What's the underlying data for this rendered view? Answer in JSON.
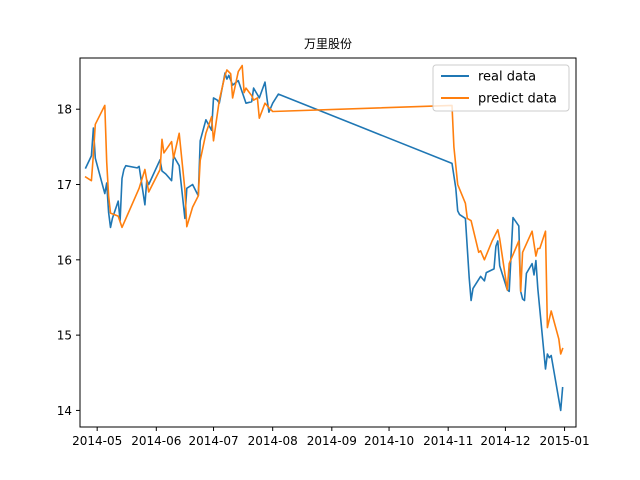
{
  "chart_data": {
    "type": "line",
    "title": "万里股份",
    "xlabel": "",
    "ylabel": "",
    "x_axis_type": "date",
    "x_ticks": [
      "2014-05",
      "2014-06",
      "2014-07",
      "2014-08",
      "2014-09",
      "2014-10",
      "2014-11",
      "2014-12",
      "2015-01"
    ],
    "y_ticks": [
      14,
      15,
      16,
      17,
      18
    ],
    "xlim": [
      "2014-04-22",
      "2015-01-07"
    ],
    "ylim": [
      13.78,
      18.68
    ],
    "grid": false,
    "legend_position": "top-right",
    "series": [
      {
        "name": "real data",
        "color": "#1f77b4",
        "points": [
          [
            "2014-04-25",
            17.22
          ],
          [
            "2014-04-28",
            17.38
          ],
          [
            "2014-04-29",
            17.75
          ],
          [
            "2014-04-30",
            17.35
          ],
          [
            "2014-05-05",
            16.88
          ],
          [
            "2014-05-06",
            17.02
          ],
          [
            "2014-05-07",
            16.63
          ],
          [
            "2014-05-08",
            16.43
          ],
          [
            "2014-05-09",
            16.55
          ],
          [
            "2014-05-12",
            16.78
          ],
          [
            "2014-05-13",
            16.52
          ],
          [
            "2014-05-14",
            17.08
          ],
          [
            "2014-05-15",
            17.2
          ],
          [
            "2014-05-16",
            17.25
          ],
          [
            "2014-05-22",
            17.22
          ],
          [
            "2014-05-23",
            17.24
          ],
          [
            "2014-05-26",
            16.73
          ],
          [
            "2014-05-27",
            17.06
          ],
          [
            "2014-05-28",
            17.0
          ],
          [
            "2014-06-03",
            17.33
          ],
          [
            "2014-06-04",
            17.18
          ],
          [
            "2014-06-06",
            17.14
          ],
          [
            "2014-06-09",
            17.05
          ],
          [
            "2014-06-10",
            17.38
          ],
          [
            "2014-06-13",
            17.25
          ],
          [
            "2014-06-16",
            16.55
          ],
          [
            "2014-06-17",
            16.95
          ],
          [
            "2014-06-20",
            17.0
          ],
          [
            "2014-06-23",
            16.85
          ],
          [
            "2014-06-24",
            17.58
          ],
          [
            "2014-06-27",
            17.86
          ],
          [
            "2014-06-30",
            17.72
          ],
          [
            "2014-07-01",
            18.15
          ],
          [
            "2014-07-03",
            18.12
          ],
          [
            "2014-07-04",
            18.08
          ],
          [
            "2014-07-07",
            18.48
          ],
          [
            "2014-07-08",
            18.4
          ],
          [
            "2014-07-09",
            18.45
          ],
          [
            "2014-07-11",
            18.32
          ],
          [
            "2014-07-14",
            18.38
          ],
          [
            "2014-07-18",
            18.08
          ],
          [
            "2014-07-21",
            18.1
          ],
          [
            "2014-07-22",
            18.28
          ],
          [
            "2014-07-25",
            18.15
          ],
          [
            "2014-07-28",
            18.36
          ],
          [
            "2014-07-29",
            18.14
          ],
          [
            "2014-07-30",
            17.96
          ],
          [
            "2014-08-01",
            18.08
          ],
          [
            "2014-08-04",
            18.2
          ],
          [
            "2014-11-03",
            17.28
          ],
          [
            "2014-11-05",
            16.95
          ],
          [
            "2014-11-06",
            16.65
          ],
          [
            "2014-11-07",
            16.6
          ],
          [
            "2014-11-10",
            16.55
          ],
          [
            "2014-11-12",
            15.76
          ],
          [
            "2014-11-13",
            15.46
          ],
          [
            "2014-11-14",
            15.62
          ],
          [
            "2014-11-18",
            15.78
          ],
          [
            "2014-11-20",
            15.72
          ],
          [
            "2014-11-21",
            15.83
          ],
          [
            "2014-11-25",
            15.88
          ],
          [
            "2014-11-26",
            16.18
          ],
          [
            "2014-11-27",
            16.25
          ],
          [
            "2014-11-28",
            15.92
          ],
          [
            "2014-12-02",
            15.6
          ],
          [
            "2014-12-03",
            15.58
          ],
          [
            "2014-12-05",
            16.56
          ],
          [
            "2014-12-08",
            16.45
          ],
          [
            "2014-12-09",
            15.58
          ],
          [
            "2014-12-10",
            15.48
          ],
          [
            "2014-12-11",
            15.46
          ],
          [
            "2014-12-12",
            15.82
          ],
          [
            "2014-12-15",
            15.95
          ],
          [
            "2014-12-16",
            15.8
          ],
          [
            "2014-12-17",
            15.99
          ],
          [
            "2014-12-18",
            15.62
          ],
          [
            "2014-12-22",
            14.55
          ],
          [
            "2014-12-23",
            14.75
          ],
          [
            "2014-12-24",
            14.7
          ],
          [
            "2014-12-25",
            14.73
          ],
          [
            "2014-12-30",
            14.0
          ],
          [
            "2014-12-31",
            14.3
          ]
        ]
      },
      {
        "name": "predict data",
        "color": "#ff7f0e",
        "points": [
          [
            "2014-04-25",
            17.1
          ],
          [
            "2014-04-28",
            17.05
          ],
          [
            "2014-04-29",
            17.4
          ],
          [
            "2014-04-30",
            17.8
          ],
          [
            "2014-05-05",
            18.05
          ],
          [
            "2014-05-06",
            17.3
          ],
          [
            "2014-05-07",
            16.85
          ],
          [
            "2014-05-08",
            16.62
          ],
          [
            "2014-05-12",
            16.58
          ],
          [
            "2014-05-14",
            16.43
          ],
          [
            "2014-05-23",
            16.95
          ],
          [
            "2014-05-26",
            17.2
          ],
          [
            "2014-05-28",
            16.9
          ],
          [
            "2014-06-03",
            17.2
          ],
          [
            "2014-06-04",
            17.6
          ],
          [
            "2014-06-05",
            17.42
          ],
          [
            "2014-06-09",
            17.57
          ],
          [
            "2014-06-10",
            17.35
          ],
          [
            "2014-06-13",
            17.68
          ],
          [
            "2014-06-16",
            16.93
          ],
          [
            "2014-06-17",
            16.44
          ],
          [
            "2014-06-20",
            16.7
          ],
          [
            "2014-06-23",
            16.85
          ],
          [
            "2014-06-24",
            17.32
          ],
          [
            "2014-06-27",
            17.68
          ],
          [
            "2014-06-30",
            17.9
          ],
          [
            "2014-07-01",
            17.58
          ],
          [
            "2014-07-04",
            18.12
          ],
          [
            "2014-07-07",
            18.45
          ],
          [
            "2014-07-08",
            18.52
          ],
          [
            "2014-07-10",
            18.47
          ],
          [
            "2014-07-11",
            18.15
          ],
          [
            "2014-07-14",
            18.5
          ],
          [
            "2014-07-16",
            18.58
          ],
          [
            "2014-07-17",
            18.22
          ],
          [
            "2014-07-18",
            18.28
          ],
          [
            "2014-07-21",
            18.18
          ],
          [
            "2014-07-22",
            18.12
          ],
          [
            "2014-07-24",
            18.15
          ],
          [
            "2014-07-25",
            17.88
          ],
          [
            "2014-07-28",
            18.08
          ],
          [
            "2014-07-30",
            18.02
          ],
          [
            "2014-08-01",
            17.97
          ],
          [
            "2014-11-03",
            18.05
          ],
          [
            "2014-11-04",
            17.5
          ],
          [
            "2014-11-06",
            17.0
          ],
          [
            "2014-11-10",
            16.75
          ],
          [
            "2014-11-11",
            16.55
          ],
          [
            "2014-11-13",
            16.52
          ],
          [
            "2014-11-17",
            16.1
          ],
          [
            "2014-11-18",
            16.12
          ],
          [
            "2014-11-20",
            16.0
          ],
          [
            "2014-11-24",
            16.25
          ],
          [
            "2014-11-27",
            16.4
          ],
          [
            "2014-11-28",
            16.28
          ],
          [
            "2014-12-02",
            15.6
          ],
          [
            "2014-12-03",
            15.95
          ],
          [
            "2014-12-08",
            16.25
          ],
          [
            "2014-12-09",
            15.58
          ],
          [
            "2014-12-10",
            16.1
          ],
          [
            "2014-12-15",
            16.38
          ],
          [
            "2014-12-17",
            16.05
          ],
          [
            "2014-12-18",
            16.15
          ],
          [
            "2014-12-19",
            16.15
          ],
          [
            "2014-12-22",
            16.38
          ],
          [
            "2014-12-23",
            15.1
          ],
          [
            "2014-12-25",
            15.32
          ],
          [
            "2014-12-29",
            14.95
          ],
          [
            "2014-12-30",
            14.75
          ],
          [
            "2014-12-31",
            14.82
          ]
        ]
      }
    ]
  }
}
